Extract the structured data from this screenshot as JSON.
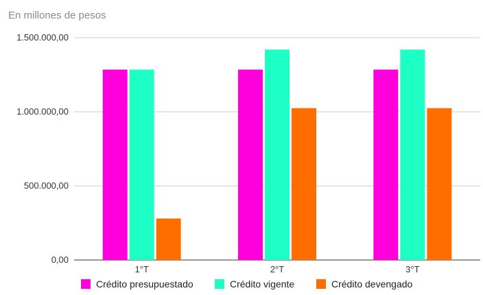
{
  "chart_data": {
    "type": "bar",
    "subtitle": "En millones de pesos",
    "categories": [
      "1°T",
      "2°T",
      "3°T"
    ],
    "series": [
      {
        "name": "Crédito presupuestado",
        "color": "#ff00dd",
        "values": [
          1285000,
          1285000,
          1285000
        ]
      },
      {
        "name": "Crédito vigente",
        "color": "#1dffc4",
        "values": [
          1285000,
          1420000,
          1420000
        ]
      },
      {
        "name": "Crédito devengado",
        "color": "#ff6d01",
        "values": [
          280000,
          1025000,
          1025000
        ]
      }
    ],
    "ylim": [
      0,
      1500000
    ],
    "yticks": [
      0,
      500000,
      1000000,
      1500000
    ],
    "ytick_labels": [
      "0,00",
      "500.000,00",
      "1.000.000,00",
      "1.500.000,00"
    ],
    "grid": true,
    "legend_position": "bottom"
  }
}
